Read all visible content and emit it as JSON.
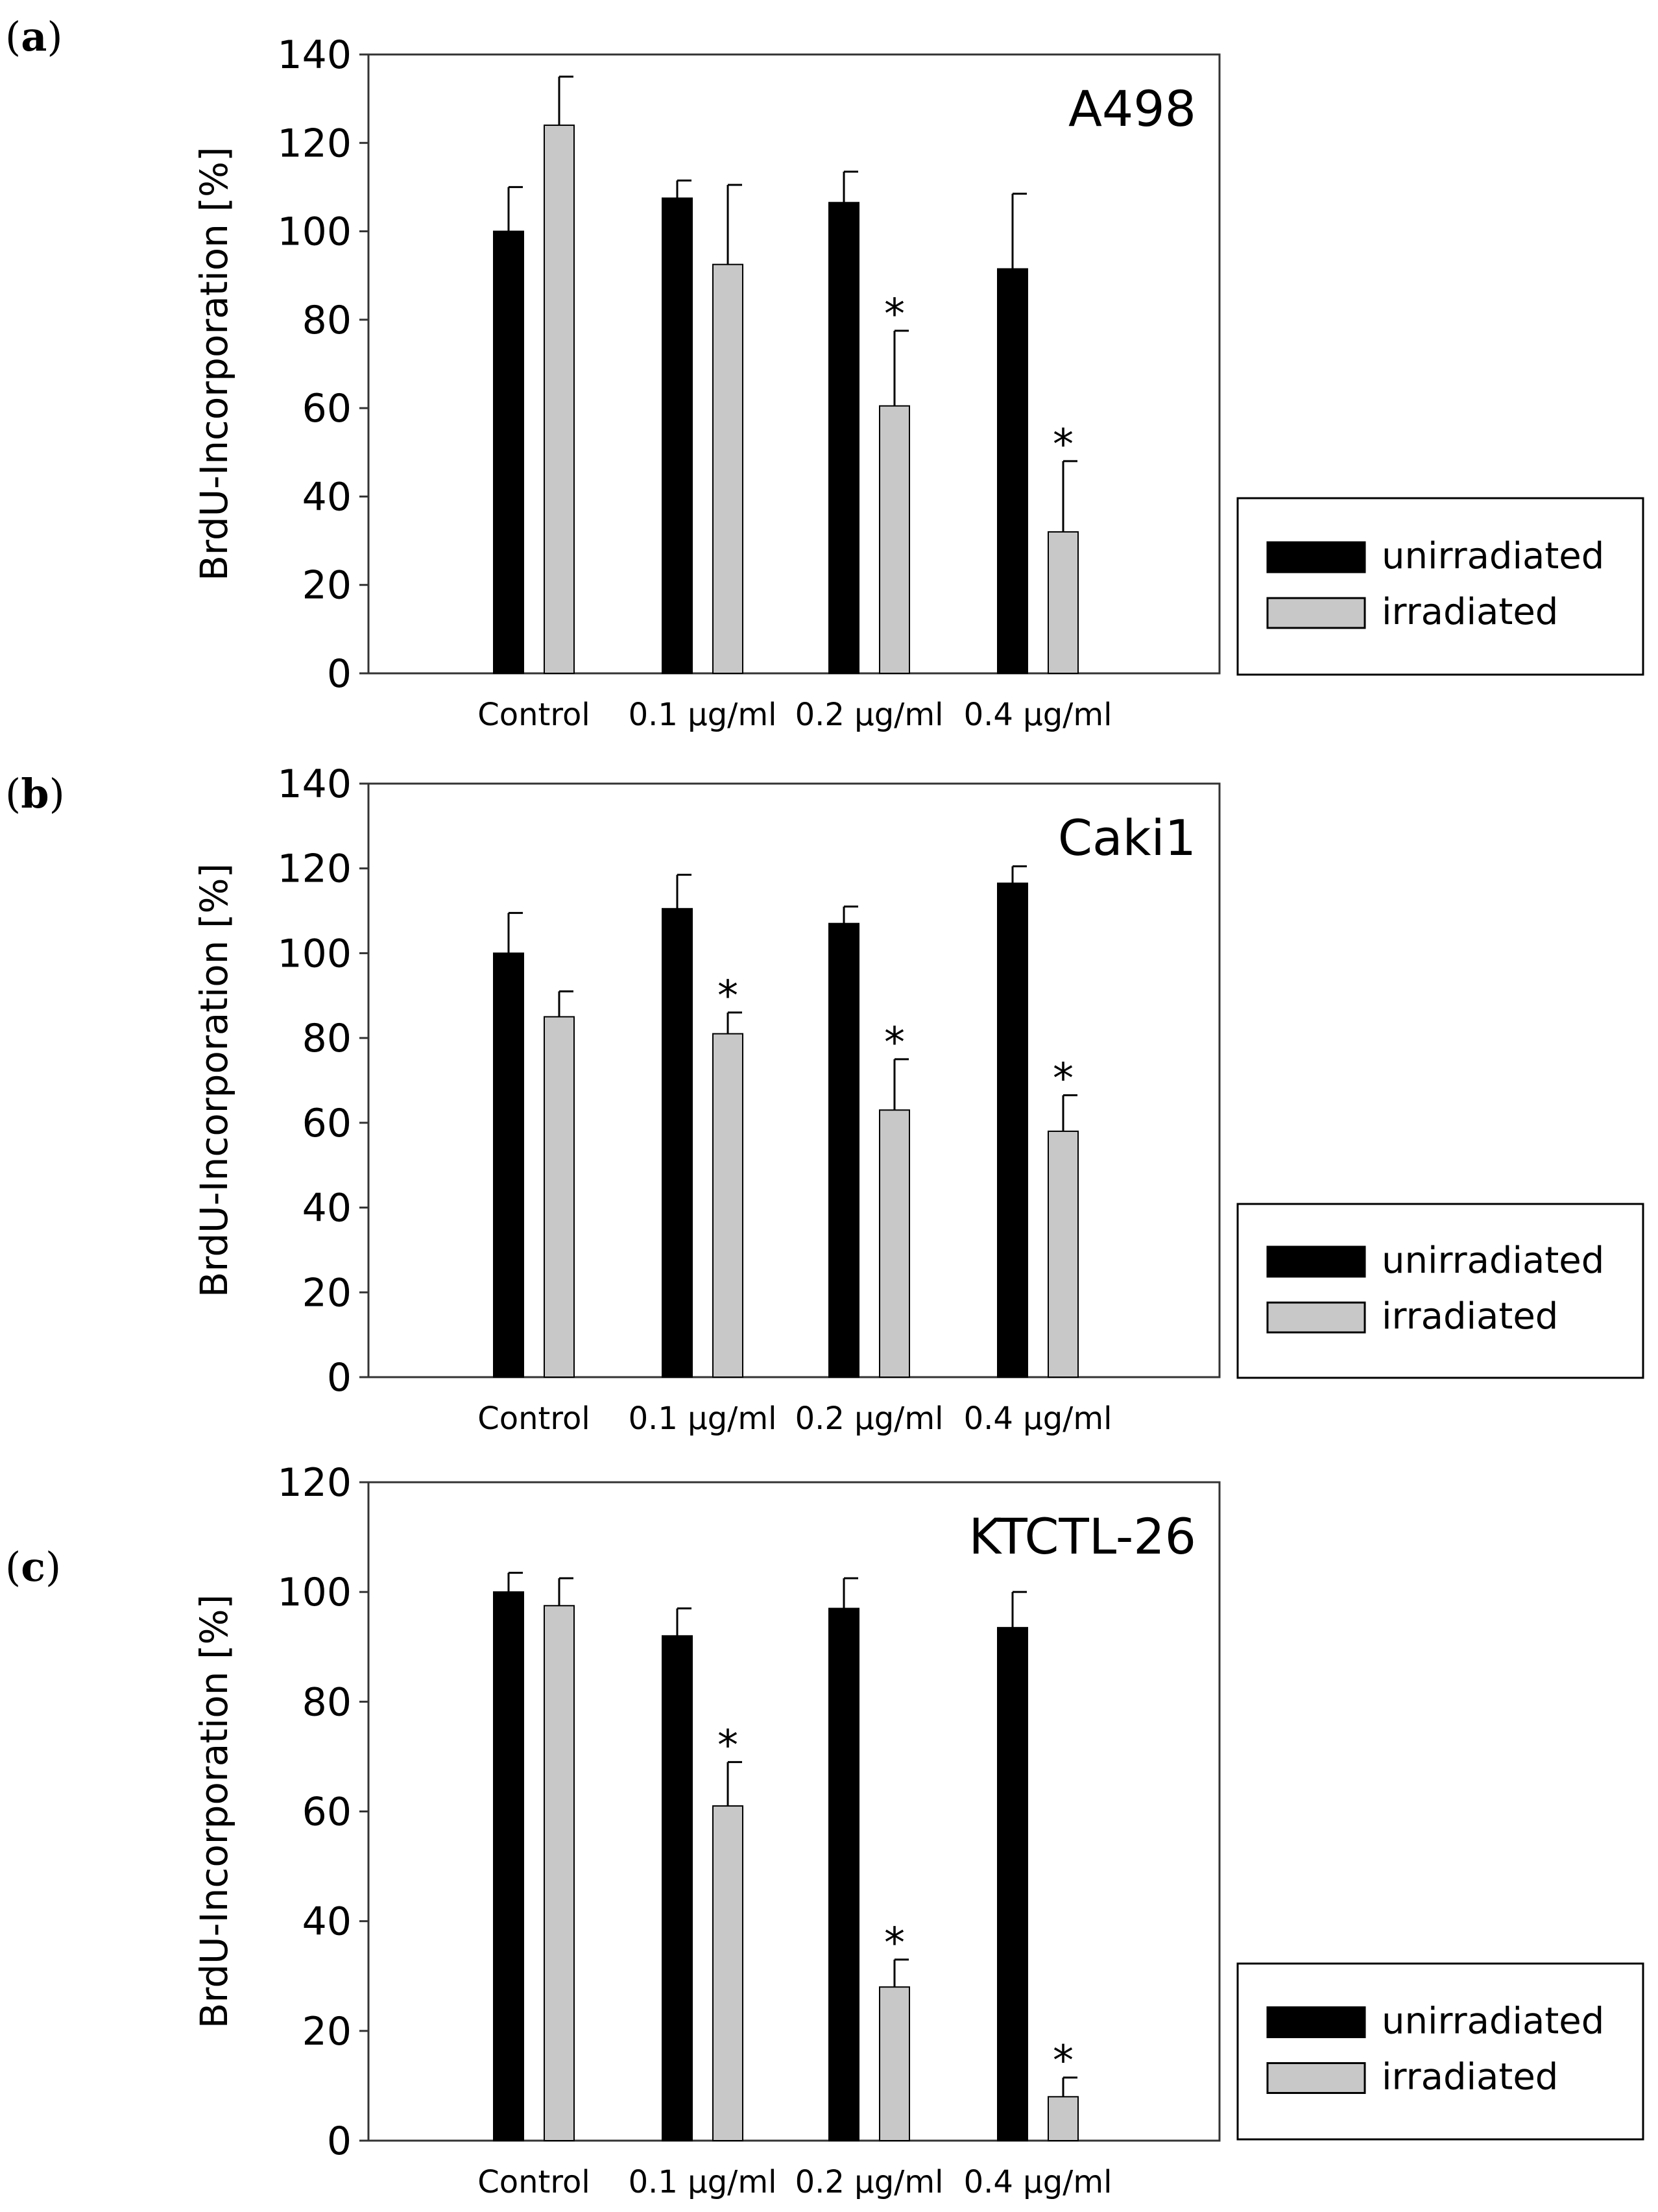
{
  "figure": {
    "colors": {
      "unirradiated": "#000000",
      "irradiated": "#c8c8c8",
      "axis": "#333333"
    }
  },
  "chart_data": [
    {
      "type": "bar",
      "panel": "(a)",
      "panel_letter": "a",
      "title": "A498",
      "ylabel": "BrdU-Incorporation [%]",
      "xlabel": "",
      "ylim": [
        0,
        140
      ],
      "yticks": [
        "0",
        "20",
        "40",
        "60",
        "80",
        "100",
        "120",
        "140"
      ],
      "categories": [
        "Control",
        "0.1 µg/ml",
        "0.2 µg/ml",
        "0.4 µg/ml"
      ],
      "series": [
        {
          "name": "unirradiated",
          "values": [
            100,
            107.5,
            106.5,
            91.5
          ],
          "errors": [
            10,
            4,
            7,
            17
          ],
          "significant": [
            false,
            false,
            false,
            false
          ]
        },
        {
          "name": "irradiated",
          "values": [
            124,
            92.5,
            60.5,
            32
          ],
          "errors": [
            11,
            18,
            17,
            16
          ],
          "significant": [
            false,
            false,
            true,
            true
          ]
        }
      ],
      "significance_marker": "*",
      "legend": {
        "placement": "right",
        "entries": [
          "unirradiated",
          "irradiated"
        ]
      }
    },
    {
      "type": "bar",
      "panel": "(b)",
      "panel_letter": "b",
      "title": "Caki1",
      "ylabel": "BrdU-Incorporation [%]",
      "xlabel": "",
      "ylim": [
        0,
        140
      ],
      "yticks": [
        "0",
        "20",
        "40",
        "60",
        "80",
        "100",
        "120",
        "140"
      ],
      "categories": [
        "Control",
        "0.1 µg/ml",
        "0.2 µg/ml",
        "0.4 µg/ml"
      ],
      "series": [
        {
          "name": "unirradiated",
          "values": [
            100,
            110.5,
            107,
            116.5
          ],
          "errors": [
            9.5,
            8,
            4,
            4
          ],
          "significant": [
            false,
            false,
            false,
            false
          ]
        },
        {
          "name": "irradiated",
          "values": [
            85,
            81,
            63,
            58
          ],
          "errors": [
            6,
            5,
            12,
            8.5
          ],
          "significant": [
            false,
            true,
            true,
            true
          ]
        }
      ],
      "significance_marker": "*",
      "legend": {
        "placement": "right",
        "entries": [
          "unirradiated",
          "irradiated"
        ]
      }
    },
    {
      "type": "bar",
      "panel": "(c)",
      "panel_letter": "c",
      "title": "KTCTL-26",
      "ylabel": "BrdU-Incorporation [%]",
      "xlabel": "",
      "ylim": [
        0,
        120
      ],
      "yticks": [
        "0",
        "20",
        "40",
        "60",
        "80",
        "100",
        "120"
      ],
      "categories": [
        "Control",
        "0.1 µg/ml",
        "0.2 µg/ml",
        "0.4 µg/ml"
      ],
      "series": [
        {
          "name": "unirradiated",
          "values": [
            100,
            92,
            97,
            93.5
          ],
          "errors": [
            3.5,
            5,
            5.5,
            6.5
          ],
          "significant": [
            false,
            false,
            false,
            false
          ]
        },
        {
          "name": "irradiated",
          "values": [
            97.5,
            61,
            28,
            8
          ],
          "errors": [
            5,
            8,
            5,
            3.5
          ],
          "significant": [
            false,
            true,
            true,
            true
          ]
        }
      ],
      "significance_marker": "*",
      "legend": {
        "placement": "right",
        "entries": [
          "unirradiated",
          "irradiated"
        ]
      }
    }
  ]
}
